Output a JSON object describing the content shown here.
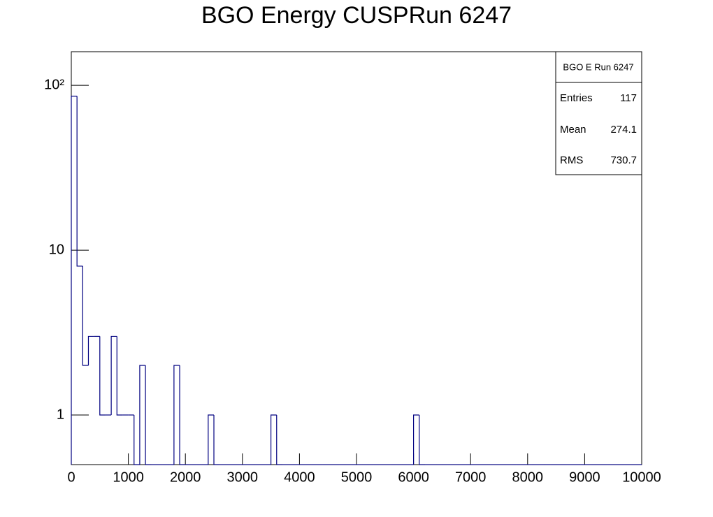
{
  "chart_data": {
    "type": "histogram",
    "title": "BGO Energy CUSPRun 6247",
    "color": "#000080",
    "log_y": true,
    "bins": [
      0,
      100,
      200,
      300,
      400,
      500,
      600,
      700,
      800,
      900,
      1000,
      1100,
      1200,
      1300,
      1400,
      1500,
      1600,
      1700,
      1800,
      1900,
      2000,
      2100,
      2200,
      2300,
      2400,
      2500,
      2600,
      2700,
      2800,
      2900,
      3000,
      3100,
      3200,
      3300,
      3400,
      3500,
      3600,
      3700,
      3800,
      3900,
      4000,
      4100,
      4200,
      4300,
      4400,
      4500,
      4600,
      4700,
      4800,
      4900,
      5000,
      5100,
      5200,
      5300,
      5400,
      5500,
      5600,
      5700,
      5800,
      5900,
      6000,
      6100,
      6200,
      6300,
      6400,
      6500,
      6600,
      6700,
      6800,
      6900,
      7000,
      7100,
      7200,
      7300,
      7400,
      7500,
      7600,
      7700,
      7800,
      7900,
      8000,
      8100,
      8200,
      8300,
      8400,
      8500,
      8600,
      8700,
      8800,
      8900,
      9000,
      9100,
      9200,
      9300,
      9400,
      9500,
      9600,
      9700,
      9800,
      9900,
      10000
    ],
    "values": [
      86,
      8,
      2,
      3,
      3,
      1,
      1,
      3,
      1,
      1,
      1,
      0,
      2,
      0,
      0,
      0,
      0,
      0,
      2,
      0,
      0,
      0,
      0,
      0,
      1,
      0,
      0,
      0,
      0,
      0,
      0,
      0,
      0,
      0,
      0,
      1,
      0,
      0,
      0,
      0,
      0,
      0,
      0,
      0,
      0,
      0,
      0,
      0,
      0,
      0,
      0,
      0,
      0,
      0,
      0,
      0,
      0,
      0,
      0,
      0,
      1,
      0,
      0,
      0,
      0,
      0,
      0,
      0,
      0,
      0,
      0,
      0,
      0,
      0,
      0,
      0,
      0,
      0,
      0,
      0,
      0,
      0,
      0,
      0,
      0,
      0,
      0,
      0,
      0,
      0,
      0,
      0,
      0,
      0,
      0,
      0,
      0,
      0,
      0,
      0
    ],
    "xlim": [
      0,
      10000
    ],
    "xticks": [
      0,
      1000,
      2000,
      3000,
      4000,
      5000,
      6000,
      7000,
      8000,
      9000,
      10000
    ],
    "ylim": [
      0.5,
      160
    ],
    "yticks": [
      1,
      10,
      {
        "value": 100,
        "label": "10²"
      }
    ],
    "stats": {
      "title": "BGO E Run 6247",
      "rows": [
        [
          "Entries",
          117
        ],
        [
          "Mean",
          274.1
        ],
        [
          "RMS",
          730.7
        ]
      ]
    }
  }
}
